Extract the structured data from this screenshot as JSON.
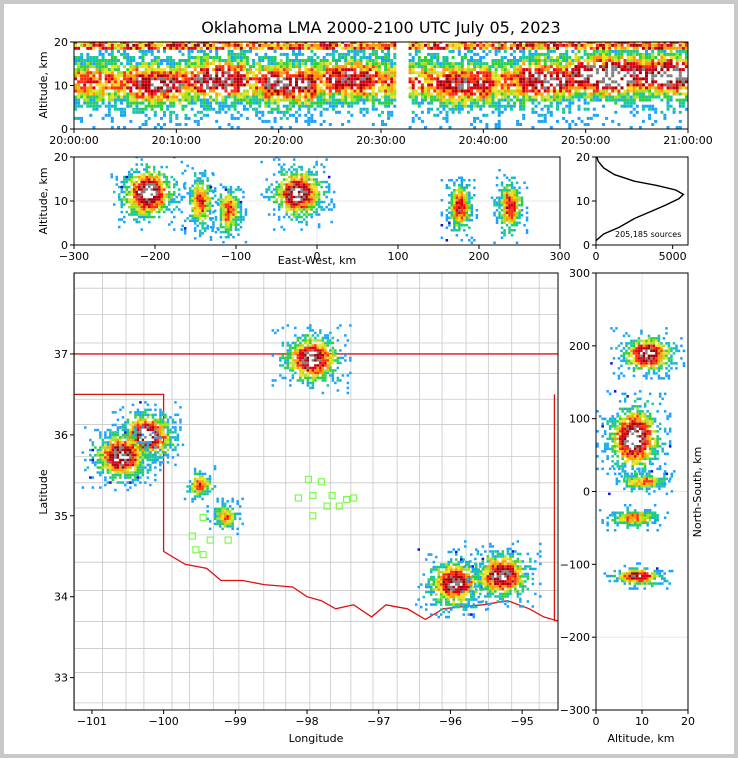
{
  "title": "Oklahoma LMA 2000-2100 UTC July 05, 2023",
  "colors": {
    "state_border": "#e01010",
    "county_lines": "#c8c8c8",
    "stations": "#7cfc4a",
    "axis": "#000000",
    "grid": "#e8e8e8"
  },
  "chart_data": [
    {
      "id": "time_height",
      "type": "heatmap",
      "xlabel": "",
      "ylabel": "Altitude, km",
      "x_ticks": [
        "20:00:00",
        "20:10:00",
        "20:20:00",
        "20:30:00",
        "20:40:00",
        "20:50:00",
        "21:00:00"
      ],
      "xlim_min": [
        0,
        60
      ],
      "ylim": [
        0,
        20
      ],
      "y_ticks": [
        0,
        10,
        20
      ],
      "data_gap_min": [
        31.5,
        32.5
      ],
      "density_core": [
        {
          "t": 8,
          "alt": 10,
          "level": 0.85
        },
        {
          "t": 14,
          "alt": 11,
          "level": 0.85
        },
        {
          "t": 21,
          "alt": 10,
          "level": 0.85
        },
        {
          "t": 27,
          "alt": 11,
          "level": 0.8
        },
        {
          "t": 38,
          "alt": 10,
          "level": 0.8
        },
        {
          "t": 46,
          "alt": 11,
          "level": 0.85
        },
        {
          "t": 52,
          "alt": 12,
          "level": 1.0
        },
        {
          "t": 58,
          "alt": 12,
          "level": 0.95
        }
      ]
    },
    {
      "id": "ew_altitude",
      "type": "heatmap",
      "xlabel": "East-West, km",
      "ylabel": "Altitude, km",
      "xlim": [
        -300,
        300
      ],
      "x_ticks": [
        -300,
        -200,
        -100,
        0,
        100,
        200,
        300
      ],
      "ylim": [
        0,
        20
      ],
      "y_ticks": [
        0,
        10,
        20
      ],
      "cells": [
        {
          "x": -210,
          "alt": 12,
          "level": 1.0
        },
        {
          "x": -145,
          "alt": 10,
          "level": 0.7
        },
        {
          "x": -110,
          "alt": 8,
          "level": 0.65
        },
        {
          "x": -25,
          "alt": 12,
          "level": 0.95
        },
        {
          "x": 175,
          "alt": 9,
          "level": 0.75
        },
        {
          "x": 237,
          "alt": 9,
          "level": 0.75
        }
      ]
    },
    {
      "id": "altitude_histogram",
      "type": "line",
      "xlim": [
        0,
        6000
      ],
      "x_ticks": [
        0,
        5000
      ],
      "ylim": [
        0,
        20
      ],
      "y_ticks": [
        0,
        10,
        20
      ],
      "annotation": "205,185 sources",
      "points": [
        [
          0,
          1
        ],
        [
          500,
          2.5
        ],
        [
          1500,
          4
        ],
        [
          2500,
          6
        ],
        [
          3500,
          7.5
        ],
        [
          4500,
          9
        ],
        [
          5400,
          10.5
        ],
        [
          5700,
          11.5
        ],
        [
          5200,
          12.5
        ],
        [
          4000,
          13.5
        ],
        [
          2500,
          14.5
        ],
        [
          1200,
          16
        ],
        [
          500,
          17.5
        ],
        [
          150,
          19
        ],
        [
          50,
          20
        ]
      ]
    },
    {
      "id": "plan_view",
      "type": "scatter",
      "xlabel": "Longitude",
      "ylabel": "Latitude",
      "xlim": [
        -101.25,
        -94.5
      ],
      "ylim": [
        32.6,
        38.0
      ],
      "x_ticks": [
        -101,
        -100,
        -99,
        -98,
        -97,
        -96,
        -95
      ],
      "y_ticks": [
        33,
        34,
        35,
        36,
        37
      ],
      "storms": [
        {
          "lon": -100.25,
          "lat": 36.0,
          "level": 1.0
        },
        {
          "lon": -100.6,
          "lat": 35.75,
          "level": 0.95
        },
        {
          "lon": -97.95,
          "lat": 36.95,
          "level": 0.95
        },
        {
          "lon": -99.5,
          "lat": 35.4,
          "level": 0.7
        },
        {
          "lon": -99.15,
          "lat": 35.0,
          "level": 0.6
        },
        {
          "lon": -95.95,
          "lat": 34.18,
          "level": 0.9
        },
        {
          "lon": -95.3,
          "lat": 34.28,
          "level": 0.9
        }
      ],
      "stations": [
        [
          -97.98,
          35.45
        ],
        [
          -97.8,
          35.42
        ],
        [
          -98.12,
          35.22
        ],
        [
          -97.92,
          35.25
        ],
        [
          -97.65,
          35.25
        ],
        [
          -97.45,
          35.2
        ],
        [
          -97.35,
          35.22
        ],
        [
          -97.72,
          35.12
        ],
        [
          -97.55,
          35.12
        ],
        [
          -97.92,
          35.0
        ],
        [
          -99.45,
          34.98
        ],
        [
          -99.6,
          34.75
        ],
        [
          -99.35,
          34.7
        ],
        [
          -99.1,
          34.7
        ],
        [
          -99.55,
          34.58
        ],
        [
          -99.45,
          34.52
        ]
      ]
    },
    {
      "id": "ns_altitude",
      "type": "heatmap",
      "xlabel": "Altitude, km",
      "ylabel": "North-South, km",
      "xlim": [
        0,
        20
      ],
      "x_ticks": [
        0,
        10,
        20
      ],
      "ylim": [
        -300,
        300
      ],
      "y_ticks": [
        -300,
        -200,
        -100,
        0,
        100,
        200,
        300
      ],
      "cells": [
        {
          "ns": 190,
          "alt": 11,
          "level": 0.95
        },
        {
          "ns": 75,
          "alt": 8,
          "level": 1.0
        },
        {
          "ns": 15,
          "alt": 10,
          "level": 0.6
        },
        {
          "ns": -35,
          "alt": 8,
          "level": 0.6
        },
        {
          "ns": -115,
          "alt": 9,
          "level": 0.85
        }
      ]
    }
  ]
}
